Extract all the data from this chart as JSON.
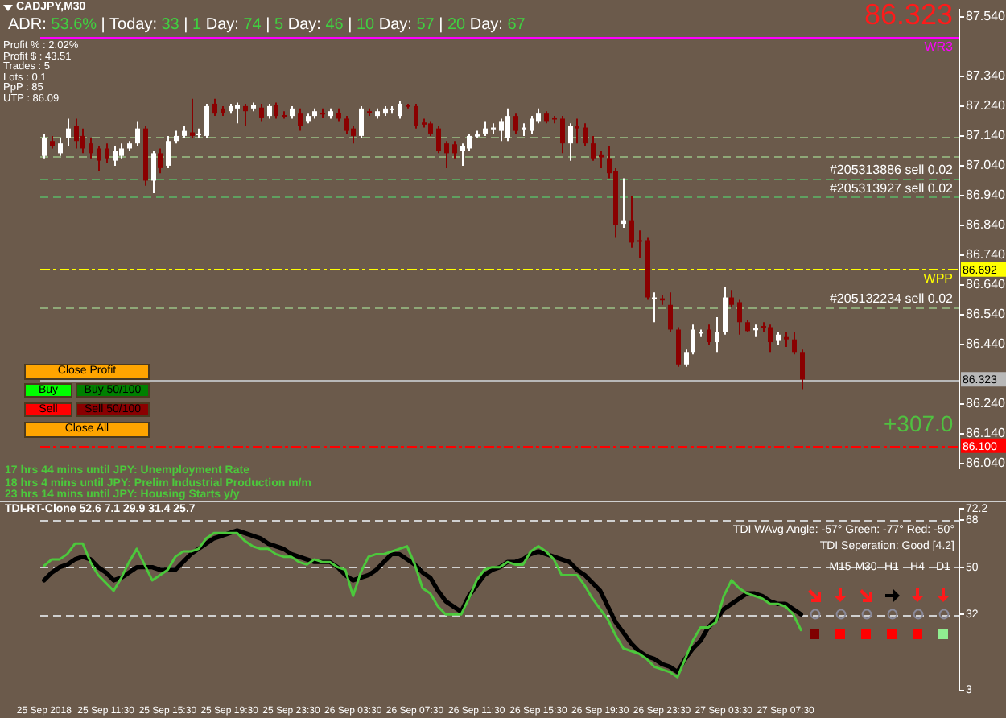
{
  "chart_data": [
    {
      "type": "candlestick",
      "title": "CADJPY,M30",
      "categories": [
        null,
        null,
        null,
        null,
        null,
        null,
        null,
        null,
        null,
        null,
        null,
        null,
        null,
        null,
        null,
        null,
        null,
        null,
        null,
        null,
        null,
        null,
        null,
        null,
        null,
        null,
        null,
        null,
        null,
        null,
        null,
        null,
        null,
        null,
        null,
        null,
        null,
        null,
        null,
        null,
        null,
        null,
        null,
        null,
        null,
        null,
        null,
        null,
        null,
        null,
        null,
        null,
        null,
        null,
        null,
        null,
        null,
        null,
        null,
        null,
        null,
        null,
        null,
        null,
        null,
        null,
        null,
        null,
        null,
        null,
        null,
        null,
        null,
        null,
        null,
        null,
        null,
        null,
        null,
        null,
        null,
        null,
        null,
        null,
        null,
        null,
        null,
        null,
        null,
        null,
        null,
        null,
        null,
        null,
        null,
        null,
        null,
        null,
        null,
        null,
        null,
        null,
        null,
        null,
        null,
        null,
        null,
        null,
        null,
        null,
        null,
        null,
        null,
        null,
        null,
        null,
        null,
        null,
        null
      ],
      "ohlc": [
        [
          87.073,
          87.148,
          87.065,
          87.132
        ],
        [
          87.123,
          87.14,
          87.098,
          87.107
        ],
        [
          87.082,
          87.132,
          87.073,
          87.115
        ],
        [
          87.132,
          87.198,
          87.107,
          87.165
        ],
        [
          87.173,
          87.198,
          87.098,
          87.123
        ],
        [
          87.14,
          87.165,
          87.082,
          87.098
        ],
        [
          87.115,
          87.132,
          87.065,
          87.082
        ],
        [
          87.098,
          87.107,
          87.023,
          87.057
        ],
        [
          87.098,
          87.115,
          87.048,
          87.065
        ],
        [
          87.057,
          87.107,
          87.04,
          87.09
        ],
        [
          87.073,
          87.115,
          87.065,
          87.098
        ],
        [
          87.098,
          87.123,
          87.09,
          87.115
        ],
        [
          87.115,
          87.19,
          87.107,
          87.165
        ],
        [
          87.165,
          87.173,
          86.973,
          86.99
        ],
        [
          86.99,
          87.09,
          86.948,
          87.082
        ],
        [
          87.082,
          87.098,
          87.015,
          87.032
        ],
        [
          87.04,
          87.14,
          87.032,
          87.123
        ],
        [
          87.123,
          87.157,
          87.115,
          87.14
        ],
        [
          87.14,
          87.173,
          87.132,
          87.157
        ],
        [
          87.152,
          87.265,
          87.132,
          87.14
        ],
        [
          87.145,
          87.165,
          87.132,
          87.148
        ],
        [
          87.14,
          87.248,
          87.132,
          87.24
        ],
        [
          87.248,
          87.265,
          87.207,
          87.215
        ],
        [
          87.232,
          87.24,
          87.207,
          87.218
        ],
        [
          87.223,
          87.248,
          87.215,
          87.24
        ],
        [
          87.232,
          87.252,
          87.182,
          87.245
        ],
        [
          87.24,
          87.248,
          87.173,
          87.223
        ],
        [
          87.232,
          87.252,
          87.223,
          87.245
        ],
        [
          87.235,
          87.248,
          87.19,
          87.202
        ],
        [
          87.207,
          87.248,
          87.198,
          87.24
        ],
        [
          87.245,
          87.252,
          87.198,
          87.207
        ],
        [
          87.21,
          87.223,
          87.198,
          87.205
        ],
        [
          87.207,
          87.24,
          87.198,
          87.232
        ],
        [
          87.215,
          87.232,
          87.157,
          87.173
        ],
        [
          87.19,
          87.215,
          87.182,
          87.207
        ],
        [
          87.207,
          87.232,
          87.198,
          87.223
        ],
        [
          87.218,
          87.232,
          87.202,
          87.212
        ],
        [
          87.207,
          87.232,
          87.198,
          87.223
        ],
        [
          87.218,
          87.232,
          87.19,
          87.198
        ],
        [
          87.198,
          87.207,
          87.148,
          87.157
        ],
        [
          87.165,
          87.173,
          87.115,
          87.14
        ],
        [
          87.14,
          87.24,
          87.132,
          87.232
        ],
        [
          87.223,
          87.232,
          87.207,
          87.218
        ],
        [
          87.207,
          87.232,
          87.198,
          87.223
        ],
        [
          87.215,
          87.24,
          87.207,
          87.232
        ],
        [
          87.227,
          87.24,
          87.215,
          87.232
        ],
        [
          87.207,
          87.257,
          87.198,
          87.248
        ],
        [
          87.243,
          87.248,
          87.232,
          87.238
        ],
        [
          87.24,
          87.248,
          87.165,
          87.173
        ],
        [
          87.185,
          87.198,
          87.168,
          87.178
        ],
        [
          87.182,
          87.19,
          87.14,
          87.148
        ],
        [
          87.165,
          87.173,
          87.082,
          87.09
        ],
        [
          87.115,
          87.123,
          87.032,
          87.082
        ],
        [
          87.112,
          87.123,
          87.065,
          87.082
        ],
        [
          87.09,
          87.115,
          87.04,
          87.107
        ],
        [
          87.098,
          87.148,
          87.09,
          87.14
        ],
        [
          87.138,
          87.157,
          87.132,
          87.145
        ],
        [
          87.148,
          87.19,
          87.14,
          87.165
        ],
        [
          87.162,
          87.182,
          87.148,
          87.168
        ],
        [
          87.157,
          87.198,
          87.123,
          87.19
        ],
        [
          87.132,
          87.232,
          87.123,
          87.207
        ],
        [
          87.207,
          87.215,
          87.148,
          87.157
        ],
        [
          87.162,
          87.182,
          87.14,
          87.168
        ],
        [
          87.157,
          87.207,
          87.148,
          87.198
        ],
        [
          87.19,
          87.232,
          87.182,
          87.215
        ],
        [
          87.215,
          87.223,
          87.182,
          87.19
        ],
        [
          87.202,
          87.207,
          87.182,
          87.195
        ],
        [
          87.198,
          87.207,
          87.082,
          87.115
        ],
        [
          87.115,
          87.182,
          87.057,
          87.173
        ],
        [
          87.173,
          87.198,
          87.115,
          87.165
        ],
        [
          87.168,
          87.182,
          87.107,
          87.115
        ],
        [
          87.115,
          87.14,
          87.057,
          87.065
        ],
        [
          87.078,
          87.09,
          87.032,
          87.068
        ],
        [
          87.065,
          87.107,
          86.998,
          87.015
        ],
        [
          87.023,
          87.032,
          86.798,
          86.84
        ],
        [
          86.845,
          86.998,
          86.832,
          86.857
        ],
        [
          86.857,
          86.94,
          86.765,
          86.782
        ],
        [
          86.79,
          86.823,
          86.732,
          86.785
        ],
        [
          86.79,
          86.798,
          86.59,
          86.598
        ],
        [
          86.593,
          86.615,
          86.515,
          86.598
        ],
        [
          86.595,
          86.607,
          86.573,
          86.588
        ],
        [
          86.573,
          86.615,
          86.482,
          86.49
        ],
        [
          86.49,
          86.498,
          86.365,
          86.373
        ],
        [
          86.373,
          86.423,
          86.365,
          86.415
        ],
        [
          86.415,
          86.507,
          86.407,
          86.49
        ],
        [
          86.478,
          86.49,
          86.465,
          86.482
        ],
        [
          86.49,
          86.507,
          86.44,
          86.448
        ],
        [
          86.448,
          86.532,
          86.415,
          86.482
        ],
        [
          86.482,
          86.632,
          86.473,
          86.598
        ],
        [
          86.598,
          86.623,
          86.565,
          86.573
        ],
        [
          86.582,
          86.59,
          86.473,
          86.515
        ],
        [
          86.515,
          86.523,
          86.482,
          86.485
        ],
        [
          86.488,
          86.507,
          86.465,
          86.495
        ],
        [
          86.502,
          86.515,
          86.482,
          86.495
        ],
        [
          86.498,
          86.507,
          86.415,
          86.448
        ],
        [
          86.452,
          86.482,
          86.44,
          86.473
        ],
        [
          86.465,
          86.482,
          86.432,
          86.457
        ],
        [
          86.457,
          86.482,
          86.407,
          86.415
        ],
        [
          86.415,
          86.423,
          86.29,
          86.323
        ],
        null,
        null,
        null,
        null,
        null,
        null,
        null,
        null,
        null,
        null,
        null,
        null,
        null,
        null,
        null,
        null,
        null,
        null,
        null,
        null
      ],
      "ylim": [
        86.025,
        87.565
      ],
      "yticks": [
        {
          "value": 87.54,
          "label": "87.540"
        },
        {
          "value": 87.34,
          "label": "87.340"
        },
        {
          "value": 87.24,
          "label": "87.240"
        },
        {
          "value": 87.14,
          "label": "87.140"
        },
        {
          "value": 87.04,
          "label": "87.040"
        },
        {
          "value": 86.94,
          "label": "86.940"
        },
        {
          "value": 86.84,
          "label": "86.840"
        },
        {
          "value": 86.74,
          "label": "86.740"
        },
        {
          "value": 86.64,
          "label": "86.640"
        },
        {
          "value": 86.54,
          "label": "86.540"
        },
        {
          "value": 86.44,
          "label": "86.440"
        },
        {
          "value": 86.24,
          "label": "86.240"
        },
        {
          "value": 86.14,
          "label": "86.140"
        },
        {
          "value": 86.04,
          "label": "86.040"
        }
      ],
      "ref_lines": [
        {
          "axis": "y",
          "value": 87.47,
          "color": "#ff00ff",
          "line_style": "solid"
        },
        {
          "axis": "y",
          "value": 87.135,
          "color": "#8fa878",
          "line_style": "dashed"
        },
        {
          "axis": "y",
          "value": 87.073,
          "color": "#8fa878",
          "line_style": "dashed"
        },
        {
          "axis": "y",
          "value": 86.998,
          "label": "#205313886 sell 0.02",
          "color": "#5fa060",
          "line_style": "dashed"
        },
        {
          "axis": "y",
          "value": 86.935,
          "label": "#205313927 sell 0.02",
          "color": "#5fa060",
          "line_style": "dashed"
        },
        {
          "axis": "y",
          "value": 86.692,
          "label": "86.692",
          "color": "#ffff00",
          "line_style": "dotted"
        },
        {
          "axis": "y",
          "value": 86.565,
          "label": "#205132234 sell 0.02",
          "color": "#8fa878",
          "line_style": "dashed"
        },
        {
          "axis": "y",
          "value": 86.323,
          "label": "86.323",
          "color": "#b8b8b8",
          "line_style": "solid"
        },
        {
          "axis": "y",
          "value": 86.1,
          "label": "86.100",
          "color": "#ff0000",
          "line_style": "dotted"
        }
      ],
      "annotations": [
        "ADR: 53.6% | Today: 33 | 1 Day: 74 | 5 Day: 46 | 10 Day: 57 | 20 Day: 67",
        "Profit % : 2.02%",
        "Profit $ : 43.51",
        "Trades : 5",
        "Lots : 0.1",
        "PpP : 85",
        "UTP : 86.09",
        "86.323",
        "+307.0",
        "Close Profit",
        "Buy",
        "Buy 50/100",
        "Sell",
        "Sell 50/100",
        "Close All",
        "17 hrs 44 mins until JPY: Unemployment Rate",
        "18 hrs 4 mins until JPY: Prelim Industrial Production m/m",
        "23 hrs 14 mins until JPY: Housing Starts y/y",
        {
          "text": "WR3",
          "y": 87.47
        },
        {
          "text": "WPP",
          "y": 86.692
        }
      ]
    },
    {
      "type": "line",
      "title": "TDI-RT-Clone 52.6 7.1 29.9 31.4 25.7",
      "categories": [
        "25 Sep 2018",
        null,
        null,
        null,
        null,
        null,
        null,
        null,
        "25 Sep 11:30",
        null,
        null,
        null,
        null,
        null,
        null,
        null,
        "25 Sep 15:30",
        null,
        null,
        null,
        null,
        null,
        null,
        null,
        "25 Sep 19:30",
        null,
        null,
        null,
        null,
        null,
        null,
        null,
        "25 Sep 23:30",
        null,
        null,
        null,
        null,
        null,
        null,
        null,
        "26 Sep 03:30",
        null,
        null,
        null,
        null,
        null,
        null,
        null,
        "26 Sep 07:30",
        null,
        null,
        null,
        null,
        null,
        null,
        null,
        "26 Sep 11:30",
        null,
        null,
        null,
        null,
        null,
        null,
        null,
        "26 Sep 15:30",
        null,
        null,
        null,
        null,
        null,
        null,
        null,
        "26 Sep 19:30",
        null,
        null,
        null,
        null,
        null,
        null,
        null,
        "26 Sep 23:30",
        null,
        null,
        null,
        null,
        null,
        null,
        null,
        "27 Sep 03:30",
        null,
        null,
        null,
        null,
        null,
        null,
        null,
        "27 Sep 07:30",
        null,
        null,
        null,
        null,
        null,
        null,
        null,
        null,
        null,
        null,
        null,
        null,
        null,
        null,
        null,
        null,
        null,
        null,
        null,
        null,
        null,
        null
      ],
      "series": [
        {
          "color": "#4cc83c",
          "values": [
            50.5,
            53,
            53,
            55,
            59,
            59,
            52,
            47,
            44,
            41,
            46,
            52,
            57,
            51,
            45,
            47,
            49,
            54,
            56,
            56,
            57,
            61,
            63,
            63,
            63,
            63,
            60,
            58,
            57,
            57,
            55,
            54,
            54,
            52,
            51,
            53,
            52,
            52,
            50,
            49,
            39,
            48,
            54,
            55,
            55,
            56,
            57,
            58,
            51,
            42,
            40,
            35,
            32,
            32,
            32,
            38,
            45,
            49,
            50,
            50,
            52,
            51,
            51,
            56,
            58,
            56,
            53,
            47,
            47,
            47,
            43,
            38,
            34,
            30,
            24,
            19,
            18,
            17,
            15,
            12,
            11,
            10,
            8,
            15,
            22,
            27,
            27,
            29,
            39,
            45,
            42,
            40,
            39,
            38,
            36,
            36,
            35,
            32,
            26,
            null,
            null,
            null,
            null,
            null,
            null,
            null,
            null,
            null,
            null,
            null,
            null,
            null,
            null,
            null,
            null,
            null,
            null,
            null,
            null
          ]
        },
        {
          "color": "#000000",
          "values": [
            45,
            48,
            50,
            51,
            53,
            54,
            53,
            50,
            48,
            45,
            46,
            48,
            50,
            50,
            50,
            49,
            49,
            49,
            52,
            55,
            57,
            59,
            61,
            62,
            63,
            64,
            63,
            62,
            61,
            59,
            58,
            57,
            55,
            54,
            53,
            52,
            52,
            52,
            50,
            47,
            45,
            46,
            47,
            49,
            52,
            55,
            55,
            53,
            51,
            48,
            46,
            41,
            37,
            35,
            33,
            39,
            43,
            47,
            49,
            50,
            52,
            52,
            53,
            55,
            56,
            55,
            54,
            53,
            52,
            49,
            47,
            44,
            41,
            35,
            29,
            25,
            21,
            18,
            16,
            15,
            13,
            12,
            10,
            15,
            19,
            22,
            27,
            30,
            34,
            36,
            38,
            40,
            40,
            39,
            37,
            36,
            36,
            34,
            32,
            null,
            null,
            null,
            null,
            null,
            null,
            null,
            null,
            null,
            null,
            null,
            null,
            null,
            null,
            null,
            null,
            null,
            null,
            null,
            null
          ]
        }
      ],
      "ylim": [
        3,
        72.2
      ],
      "yticks": [
        3,
        32,
        50,
        68,
        72.2
      ],
      "ref_lines": [
        {
          "axis": "y",
          "value": 68,
          "color": "#d0d0d0",
          "line_style": "dashed"
        },
        {
          "axis": "y",
          "value": 50,
          "color": "#d0d0d0",
          "line_style": "dashed"
        },
        {
          "axis": "y",
          "value": 32,
          "color": "#d0d0d0",
          "line_style": "dashed"
        }
      ],
      "annotations": [
        "TDI WAvg Angle: -57°  Green: -77°  Red: -50°",
        "TDI Seperation: Good [4.2]",
        "M15",
        "M30",
        "H1",
        "H4",
        "D1"
      ]
    }
  ]
}
